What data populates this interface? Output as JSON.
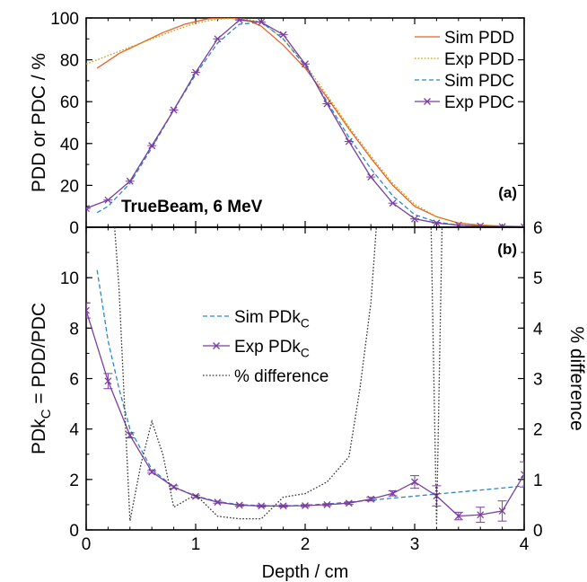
{
  "chart_data": [
    {
      "panel_label": "(a)",
      "type": "line",
      "annotation": "TrueBeam, 6 MeV",
      "xlabel": "",
      "ylabel": "PDD or PDC / %",
      "xlim": [
        0,
        4
      ],
      "ylim": [
        0,
        100
      ],
      "xticks": [
        0,
        1,
        2,
        3,
        4
      ],
      "yticks": [
        0,
        20,
        40,
        60,
        80,
        100
      ],
      "legend_position": "top-right",
      "grid": false,
      "series": [
        {
          "name": "Sim PDD",
          "color": "#e8622a",
          "style": "solid",
          "x": [
            0.1,
            0.3,
            0.5,
            0.7,
            0.9,
            1.1,
            1.2,
            1.3,
            1.4,
            1.5,
            1.6,
            1.8,
            2.0,
            2.2,
            2.4,
            2.6,
            2.8,
            3.0,
            3.2,
            3.4,
            3.6,
            3.8,
            4.0
          ],
          "y": [
            76,
            83,
            88,
            93,
            97,
            99.5,
            100,
            100,
            99.5,
            98.5,
            96,
            87,
            76,
            62,
            47,
            33,
            20,
            10,
            5,
            2,
            1,
            0.5,
            0.3
          ]
        },
        {
          "name": "Exp PDD",
          "color": "#c8a000",
          "style": "dotted",
          "x": [
            0,
            0.2,
            0.4,
            0.6,
            0.8,
            1.0,
            1.2,
            1.4,
            1.6,
            1.8,
            2.0,
            2.2,
            2.4,
            2.6,
            2.8,
            3.0,
            3.2,
            3.4,
            3.6,
            3.8,
            4.0
          ],
          "y": [
            78,
            82,
            86,
            90,
            94,
            97.5,
            99.5,
            100,
            98,
            90,
            78,
            63,
            48,
            34,
            21,
            11,
            5,
            2,
            1,
            0.5,
            0.3
          ]
        },
        {
          "name": "Sim PDC",
          "color": "#2d86c4",
          "style": "dashed",
          "x": [
            0.1,
            0.2,
            0.4,
            0.6,
            0.8,
            1.0,
            1.2,
            1.4,
            1.6,
            1.8,
            2.0,
            2.2,
            2.4,
            2.6,
            2.8,
            3.0,
            3.2,
            3.4,
            3.6,
            3.8,
            4.0
          ],
          "y": [
            7,
            10,
            21,
            38,
            56,
            73,
            88,
            97,
            98,
            90,
            77,
            60,
            43,
            28,
            15,
            6,
            2.5,
            1,
            0.5,
            0.3,
            0.2
          ]
        },
        {
          "name": "Exp PDC",
          "color": "#7a3fa0",
          "style": "solid",
          "marker": "x",
          "x": [
            0,
            0.2,
            0.4,
            0.6,
            0.8,
            1.0,
            1.2,
            1.4,
            1.6,
            1.8,
            2.0,
            2.2,
            2.4,
            2.6,
            2.8,
            3.0,
            3.2,
            3.4,
            3.6,
            3.8,
            4.0
          ],
          "y": [
            9,
            13,
            22,
            39,
            56,
            74,
            90,
            99,
            98,
            92,
            78,
            59,
            41,
            24,
            11.5,
            4,
            2,
            1,
            0.6,
            0.3,
            0.2
          ]
        }
      ]
    },
    {
      "panel_label": "(b)",
      "type": "line",
      "xlabel": "Depth / cm",
      "ylabel": "PDk",
      "ylabel_sub": "C",
      "ylabel_rest": " = PDD/PDC",
      "y2label": "% difference",
      "xlim": [
        0,
        4
      ],
      "ylim": [
        0,
        12
      ],
      "y2lim": [
        0,
        6
      ],
      "xticks": [
        0,
        1,
        2,
        3,
        4
      ],
      "yticks": [
        0,
        2,
        4,
        6,
        8,
        10
      ],
      "y2ticks": [
        0,
        1,
        2,
        3,
        4,
        5,
        6
      ],
      "legend_position": "center-left",
      "grid": false,
      "series": [
        {
          "name": "Sim PDk",
          "name_sub": "C",
          "color": "#2d86c4",
          "style": "dashed",
          "axis": "left",
          "x": [
            0.1,
            0.2,
            0.3,
            0.4,
            0.6,
            0.8,
            1.0,
            1.2,
            1.4,
            1.6,
            1.8,
            2.0,
            2.2,
            2.4,
            2.6,
            2.8,
            3.0,
            3.2,
            3.4,
            3.6,
            3.8,
            4.0
          ],
          "y": [
            10.3,
            7.5,
            5.6,
            4.0,
            2.4,
            1.7,
            1.35,
            1.12,
            1.0,
            0.96,
            0.95,
            0.98,
            1.03,
            1.1,
            1.18,
            1.26,
            1.34,
            1.42,
            1.5,
            1.58,
            1.66,
            1.75
          ]
        },
        {
          "name": "Exp PDk",
          "name_sub": "C",
          "color": "#7a3fa0",
          "style": "solid",
          "marker": "x",
          "axis": "left",
          "x": [
            0,
            0.2,
            0.4,
            0.6,
            0.8,
            1.0,
            1.2,
            1.4,
            1.6,
            1.8,
            2.0,
            2.2,
            2.4,
            2.6,
            2.8,
            3.0,
            3.2,
            3.4,
            3.6,
            3.8,
            4.0
          ],
          "y": [
            8.7,
            5.9,
            3.75,
            2.3,
            1.7,
            1.33,
            1.1,
            0.98,
            0.95,
            0.95,
            0.96,
            1.0,
            1.06,
            1.22,
            1.45,
            1.9,
            1.35,
            0.55,
            0.6,
            0.75,
            2.2
          ],
          "err": [
            0.3,
            0.3,
            0.1,
            0.05,
            0.05,
            0.05,
            0.04,
            0.04,
            0.04,
            0.04,
            0.04,
            0.04,
            0.05,
            0.07,
            0.1,
            0.25,
            0.4,
            0.15,
            0.3,
            0.4,
            0.5
          ]
        },
        {
          "name": "% difference",
          "color": "#333333",
          "style": "dotted",
          "axis": "right",
          "x": [
            0.26,
            0.3,
            0.4,
            0.5,
            0.6,
            0.7,
            0.8,
            1.0,
            1.2,
            1.4,
            1.6,
            1.8,
            2.0,
            2.2,
            2.4,
            2.5,
            2.6,
            2.65,
            3.15,
            3.2,
            3.25
          ],
          "y": [
            6,
            4.8,
            0.18,
            1.3,
            2.15,
            1.5,
            0.45,
            0.7,
            0.27,
            0.22,
            0.22,
            0.65,
            0.72,
            0.95,
            1.45,
            2.8,
            4.5,
            6,
            6,
            0.1,
            6
          ]
        }
      ]
    }
  ]
}
